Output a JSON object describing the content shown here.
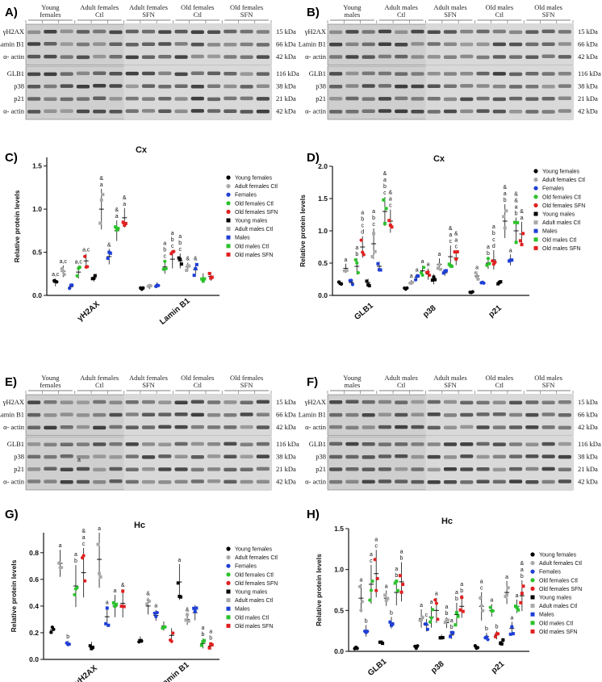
{
  "figure": {
    "panel_labels": [
      "A)",
      "B)",
      "C)",
      "D)",
      "E)",
      "F)",
      "G)",
      "H)"
    ],
    "blot_A": {
      "groups": [
        "Young females",
        "Adult females Ctl",
        "Adult females SFN",
        "Old females Ctl",
        "Old females SFN"
      ]
    },
    "blot_B": {
      "groups": [
        "Young males",
        "Adult males Ctl",
        "Adult males SFN",
        "Old males Ctl",
        "Old males SFN"
      ]
    },
    "blot_top_proteins": [
      "γH2AX",
      "Lamin B1",
      "α- actin"
    ],
    "blot_top_kda": [
      "15 kDa",
      "66 kDa",
      "42 kDa"
    ],
    "blot_bottom_proteins": [
      "GLB1",
      "p38",
      "p21",
      "α- actin"
    ],
    "blot_bottom_kda": [
      "116 kDa",
      "38 kDa",
      "21 kDa",
      "42 kDa"
    ],
    "legend": [
      "Young females",
      "Adult females Ctl",
      "Females",
      "Old females Ctl",
      "Old females SFN",
      "Young males",
      "Adult males Ctl",
      "Males",
      "Old males Ctl",
      "Old males SFN"
    ],
    "legend_colors": [
      "#000000",
      "#a9a9a9",
      "#1f3fd6",
      "#2bc22b",
      "#e02020",
      "#000000",
      "#a9a9a9",
      "#1f3fd6",
      "#2bc22b",
      "#e02020"
    ],
    "legend_shapes": [
      "circle",
      "circle",
      "circle",
      "circle",
      "circle",
      "square",
      "square",
      "square",
      "square",
      "square"
    ],
    "ylabel": "Relative protein levels",
    "stray_label": "a"
  },
  "chart_data": [
    {
      "id": "C",
      "type": "scatter",
      "title": "Cx",
      "ylabel": "Relative protein levels",
      "ylim": [
        0,
        1.6
      ],
      "yticks": [
        "0.0",
        "0.5",
        "1.0",
        "1.5"
      ],
      "ytick_values": [
        0,
        0.5,
        1.0,
        1.5
      ],
      "categories": [
        "γH2AX",
        "Lamin B1"
      ],
      "series_means": [
        [
          0.15,
          0.28,
          0.1,
          0.27,
          0.4,
          0.2,
          1.0,
          0.45,
          0.75,
          0.9
        ],
        [
          0.07,
          0.1,
          0.12,
          0.33,
          0.42,
          0.4,
          0.33,
          0.3,
          0.2,
          0.22
        ]
      ],
      "annotations": [
        [
          "a,c",
          "a,c",
          "",
          "a,c",
          "a,c",
          "",
          "& a",
          "&",
          "& a",
          "& a"
        ],
        [
          "",
          "",
          "",
          "a b c",
          "a b c",
          "a b c",
          "&",
          "&",
          "",
          ""
        ]
      ]
    },
    {
      "id": "D",
      "type": "scatter",
      "title": "Cx",
      "ylabel": "Relative protein levels",
      "ylim": [
        0,
        2.0
      ],
      "yticks": [
        "0.0",
        "0.5",
        "1.0",
        "1.5",
        "2.0"
      ],
      "ytick_values": [
        0,
        0.5,
        1.0,
        1.5,
        2.0
      ],
      "categories": [
        "GLB1",
        "p38",
        "p21"
      ],
      "series_means": [
        [
          0.2,
          0.42,
          0.2,
          0.45,
          0.75,
          0.2,
          0.8,
          0.45,
          1.3,
          1.15
        ],
        [
          0.1,
          0.2,
          0.28,
          0.38,
          0.33,
          0.25,
          0.48,
          0.35,
          0.6,
          0.58
        ],
        [
          0.05,
          0.3,
          0.2,
          0.5,
          0.55,
          0.2,
          1.15,
          0.55,
          1.0,
          0.95
        ]
      ],
      "annotations": [
        [
          "",
          "a",
          "",
          "a b",
          "a b c d",
          "",
          "a b c",
          "",
          "& a b c",
          "& a c"
        ],
        [
          "",
          "a",
          "a",
          "a",
          "a",
          "",
          "a",
          "",
          "& a c",
          "& a c"
        ],
        [
          "",
          "a",
          "",
          "a b",
          "a b c d",
          "",
          "& a b",
          "a",
          "& & a b",
          "& a"
        ]
      ]
    },
    {
      "id": "G",
      "type": "scatter",
      "title": "Hc",
      "ylabel": "Relative protein levels",
      "ylim": [
        0,
        0.95
      ],
      "yticks": [
        "0.0",
        "0.2",
        "0.4",
        "0.6",
        "0.8"
      ],
      "ytick_values": [
        0,
        0.2,
        0.4,
        0.6,
        0.8
      ],
      "categories": [
        "γH2AX",
        "Lamin B1"
      ],
      "series_means": [
        [
          0.22,
          0.72,
          0.12,
          0.55,
          0.65,
          0.1,
          0.75,
          0.32,
          0.4,
          0.42
        ],
        [
          0.15,
          0.4,
          0.33,
          0.25,
          0.18,
          0.58,
          0.3,
          0.35,
          0.12,
          0.1
        ]
      ],
      "annotations": [
        [
          "",
          "a",
          "b",
          "a b",
          "& a c",
          "",
          "a",
          "a",
          "a",
          "&"
        ],
        [
          "",
          "&",
          "a",
          "",
          "",
          "a",
          "&",
          "",
          "a b",
          "a b"
        ]
      ]
    },
    {
      "id": "H",
      "type": "scatter",
      "title": "Hc",
      "ylabel": "Relative protein levels",
      "ylim": [
        0,
        1.5
      ],
      "yticks": [
        "0.0",
        "0.5",
        "1.0",
        "1.5"
      ],
      "ytick_values": [
        0,
        0.5,
        1.0,
        1.5
      ],
      "categories": [
        "GLB1",
        "p38",
        "p21"
      ],
      "series_means": [
        [
          0.05,
          0.65,
          0.25,
          0.82,
          0.95,
          0.1,
          0.65,
          0.35,
          0.72,
          0.85
        ],
        [
          0.05,
          0.4,
          0.32,
          0.42,
          0.5,
          0.18,
          0.35,
          0.2,
          0.45,
          0.55
        ],
        [
          0.05,
          0.55,
          0.18,
          0.5,
          0.2,
          0.12,
          0.72,
          0.28,
          0.55,
          0.68
        ]
      ],
      "annotations": [
        [
          "",
          "a",
          "b",
          "a c",
          "a c",
          "",
          "a",
          "b",
          "a b",
          "a b"
        ],
        [
          "",
          "a",
          "c",
          "a",
          "a",
          "",
          "a b",
          "a b",
          "a b",
          "a b"
        ],
        [
          "",
          "a c",
          "b",
          "a",
          "b",
          "",
          "a",
          "a",
          "a",
          "& a b"
        ]
      ]
    }
  ]
}
